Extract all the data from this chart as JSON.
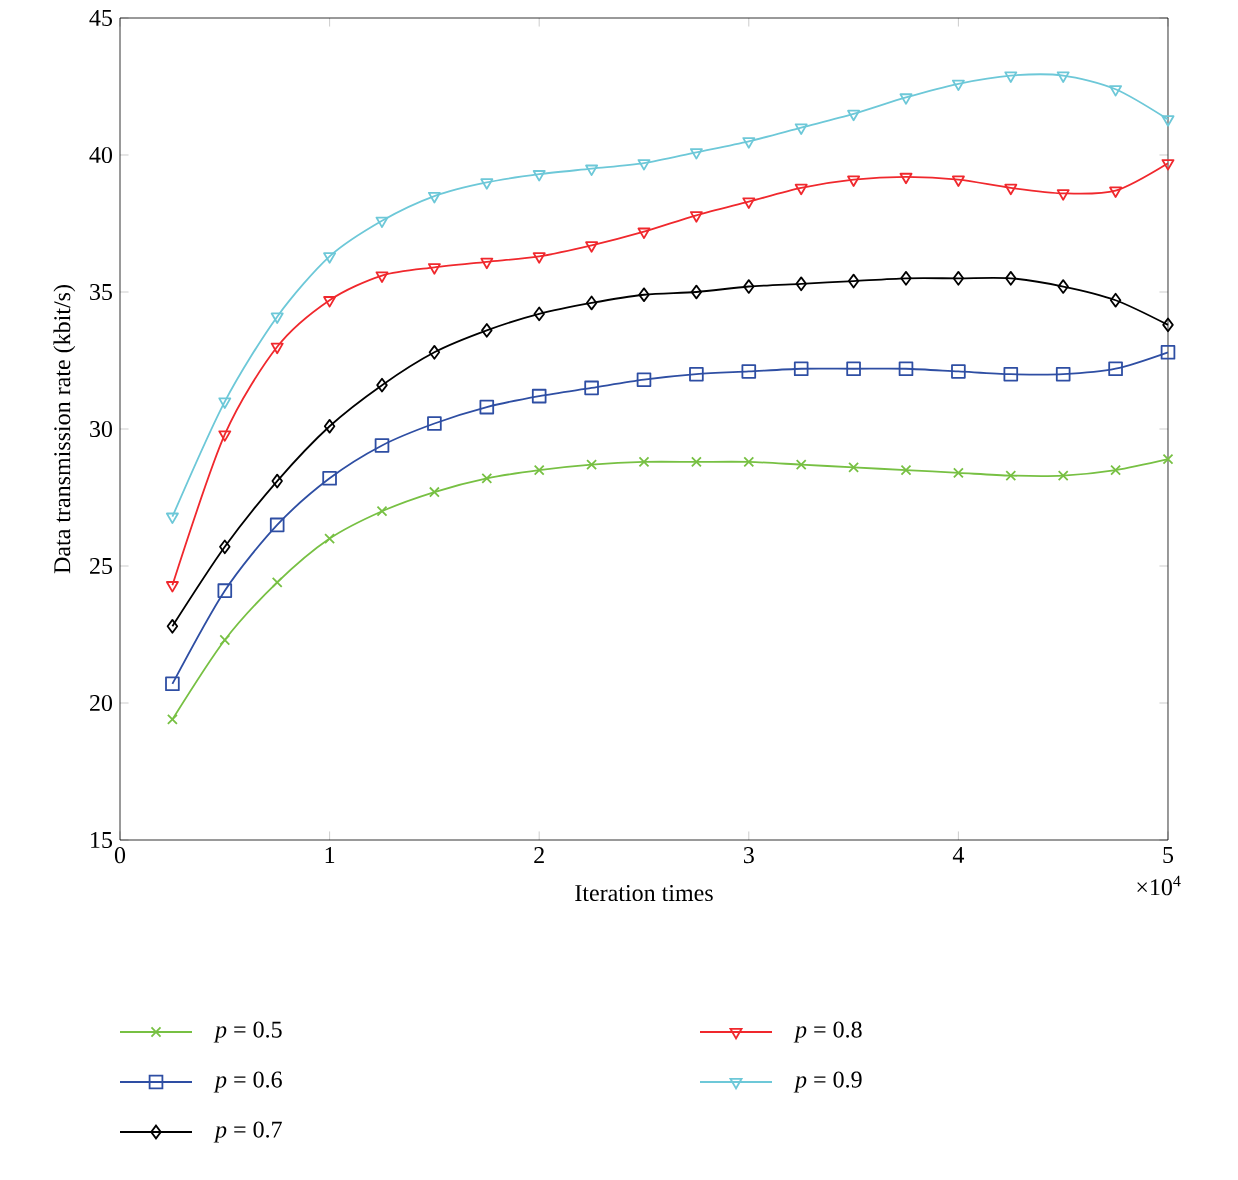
{
  "chart_data": {
    "type": "line",
    "xlabel": "Iteration times",
    "ylabel": "Data transmission rate (kbit/s)",
    "x": [
      0.25,
      0.5,
      0.75,
      1,
      1.25,
      1.5,
      1.75,
      2,
      2.25,
      2.5,
      2.75,
      3,
      3.25,
      3.5,
      3.75,
      4,
      4.25,
      4.5,
      4.75,
      5
    ],
    "series": [
      {
        "name": "*p* = 0.5",
        "color": "#77c043",
        "marker": "cross",
        "values": [
          19.4,
          22.3,
          24.4,
          26.0,
          27.0,
          27.7,
          28.2,
          28.5,
          28.7,
          28.8,
          28.8,
          28.8,
          28.7,
          28.6,
          28.5,
          28.4,
          28.3,
          28.3,
          28.5,
          28.9
        ]
      },
      {
        "name": "*p* = 0.6",
        "color": "#2e4ea3",
        "marker": "square",
        "values": [
          20.7,
          24.1,
          26.5,
          28.2,
          29.4,
          30.2,
          30.8,
          31.2,
          31.5,
          31.8,
          32.0,
          32.1,
          32.2,
          32.2,
          32.2,
          32.1,
          32.0,
          32.0,
          32.2,
          32.8
        ]
      },
      {
        "name": "*p* = 0.7",
        "color": "#000000",
        "marker": "diamond",
        "values": [
          22.8,
          25.7,
          28.1,
          30.1,
          31.6,
          32.8,
          33.6,
          34.2,
          34.6,
          34.9,
          35.0,
          35.2,
          35.3,
          35.4,
          35.5,
          35.5,
          35.5,
          35.2,
          34.7,
          33.8
        ]
      },
      {
        "name": "*p* = 0.8",
        "color": "#f0282d",
        "marker": "triangle",
        "values": [
          24.3,
          29.8,
          33.0,
          34.7,
          35.6,
          35.9,
          36.1,
          36.3,
          36.7,
          37.2,
          37.8,
          38.3,
          38.8,
          39.1,
          39.2,
          39.1,
          38.8,
          38.6,
          38.7,
          39.7
        ]
      },
      {
        "name": "*p* = 0.9",
        "color": "#6dc8d8",
        "marker": "triangle",
        "values": [
          26.8,
          31.0,
          34.1,
          36.3,
          37.6,
          38.5,
          39.0,
          39.3,
          39.5,
          39.7,
          40.1,
          40.5,
          41.0,
          41.5,
          42.1,
          42.6,
          42.9,
          42.9,
          42.4,
          41.3
        ]
      }
    ],
    "xlim": [
      0,
      5
    ],
    "ylim": [
      15,
      45
    ],
    "xticks": [
      0,
      1,
      2,
      3,
      4,
      5
    ],
    "yticks": [
      15,
      20,
      25,
      30,
      35,
      40,
      45
    ],
    "annotations": [
      "×10$^{4}$"
    ],
    "grid": false,
    "legend": "bottom",
    "line_style": "solid"
  }
}
